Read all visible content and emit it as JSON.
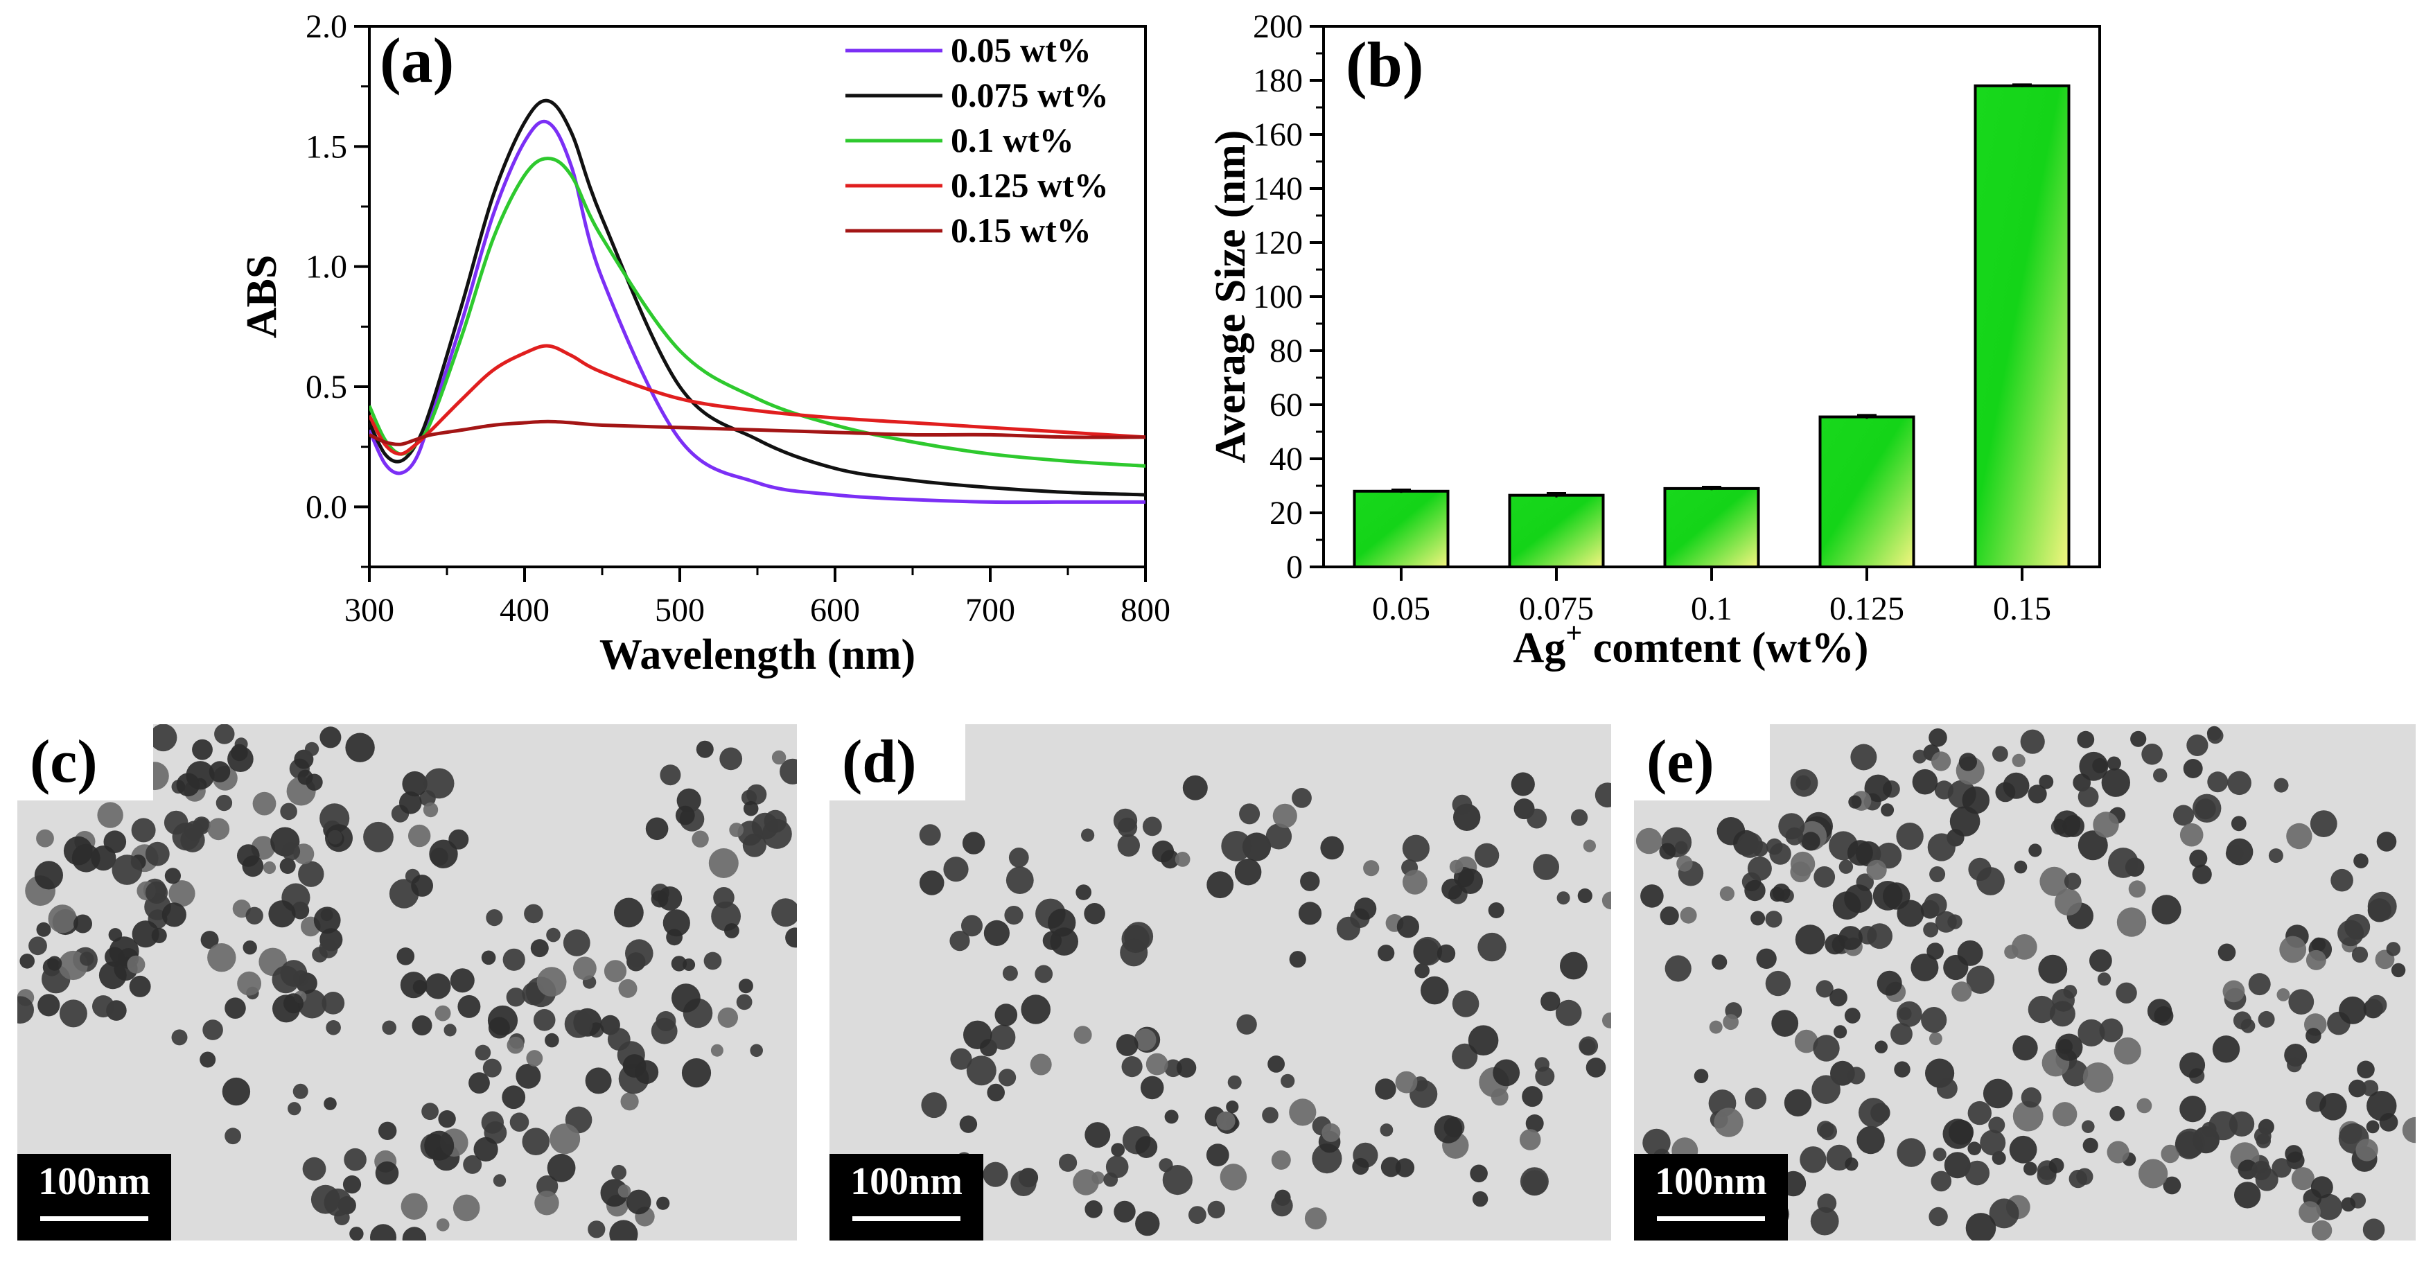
{
  "colors": {
    "s005": "#7b2ff5",
    "s0075": "#111111",
    "s01": "#2ec92e",
    "s0125": "#e01e1e",
    "s015": "#a31515",
    "bar_green": "#18d81c",
    "bar_yellow": "#f4f580",
    "tem_bg": "#dcdcdc",
    "particle": "#2c2c2c"
  },
  "chart_data": [
    {
      "panel": "(a)",
      "type": "line",
      "xlabel": "Wavelength (nm)",
      "ylabel": "ABS",
      "xlim": [
        300,
        800
      ],
      "ylim": [
        -0.25,
        2.0
      ],
      "xticks": [
        "300",
        "400",
        "500",
        "600",
        "700",
        "800"
      ],
      "yticks": [
        "0.0",
        "0.5",
        "1.0",
        "1.5",
        "2.0"
      ],
      "x": [
        300,
        310,
        320,
        330,
        340,
        360,
        380,
        400,
        415,
        430,
        450,
        500,
        550,
        600,
        650,
        700,
        750,
        800
      ],
      "series": [
        {
          "name": "0.05 wt%",
          "color_key": "s005",
          "values": [
            0.32,
            0.18,
            0.14,
            0.2,
            0.38,
            0.78,
            1.22,
            1.52,
            1.6,
            1.42,
            0.95,
            0.28,
            0.1,
            0.05,
            0.03,
            0.02,
            0.02,
            0.02
          ]
        },
        {
          "name": "0.075 wt%",
          "color_key": "s0075",
          "values": [
            0.35,
            0.22,
            0.19,
            0.26,
            0.42,
            0.85,
            1.3,
            1.6,
            1.69,
            1.56,
            1.2,
            0.5,
            0.28,
            0.16,
            0.11,
            0.08,
            0.06,
            0.05
          ]
        },
        {
          "name": "0.1 wt%",
          "color_key": "s01",
          "values": [
            0.42,
            0.28,
            0.22,
            0.26,
            0.36,
            0.72,
            1.12,
            1.38,
            1.45,
            1.38,
            1.12,
            0.65,
            0.45,
            0.34,
            0.27,
            0.22,
            0.19,
            0.17
          ]
        },
        {
          "name": "0.125 wt%",
          "color_key": "s0125",
          "values": [
            0.38,
            0.26,
            0.22,
            0.26,
            0.32,
            0.45,
            0.57,
            0.64,
            0.67,
            0.63,
            0.56,
            0.45,
            0.4,
            0.37,
            0.35,
            0.33,
            0.31,
            0.29
          ]
        },
        {
          "name": "0.15 wt%",
          "color_key": "s015",
          "values": [
            0.3,
            0.27,
            0.26,
            0.28,
            0.3,
            0.32,
            0.34,
            0.35,
            0.355,
            0.35,
            0.34,
            0.33,
            0.32,
            0.31,
            0.3,
            0.3,
            0.29,
            0.29
          ]
        }
      ],
      "legend": "top-right"
    },
    {
      "panel": "(b)",
      "type": "bar",
      "xlabel_main": "Ag",
      "xlabel_sup": "+",
      "xlabel_rest": " comtent (wt%)",
      "ylabel": "Average Size (nm)",
      "ylim": [
        0,
        200
      ],
      "yticks": [
        "0",
        "20",
        "40",
        "60",
        "80",
        "100",
        "120",
        "140",
        "160",
        "180",
        "200"
      ],
      "categories": [
        "0.05",
        "0.075",
        "0.1",
        "0.125",
        "0.15"
      ],
      "values": [
        28,
        26.5,
        29,
        55.5,
        178
      ],
      "errors": [
        0.6,
        0.8,
        0.6,
        0.7,
        0.5
      ]
    }
  ],
  "tem_panels": [
    {
      "label": "(c)",
      "scale_text": "100nm"
    },
    {
      "label": "(d)",
      "scale_text": "100nm"
    },
    {
      "label": "(e)",
      "scale_text": "100nm"
    }
  ]
}
